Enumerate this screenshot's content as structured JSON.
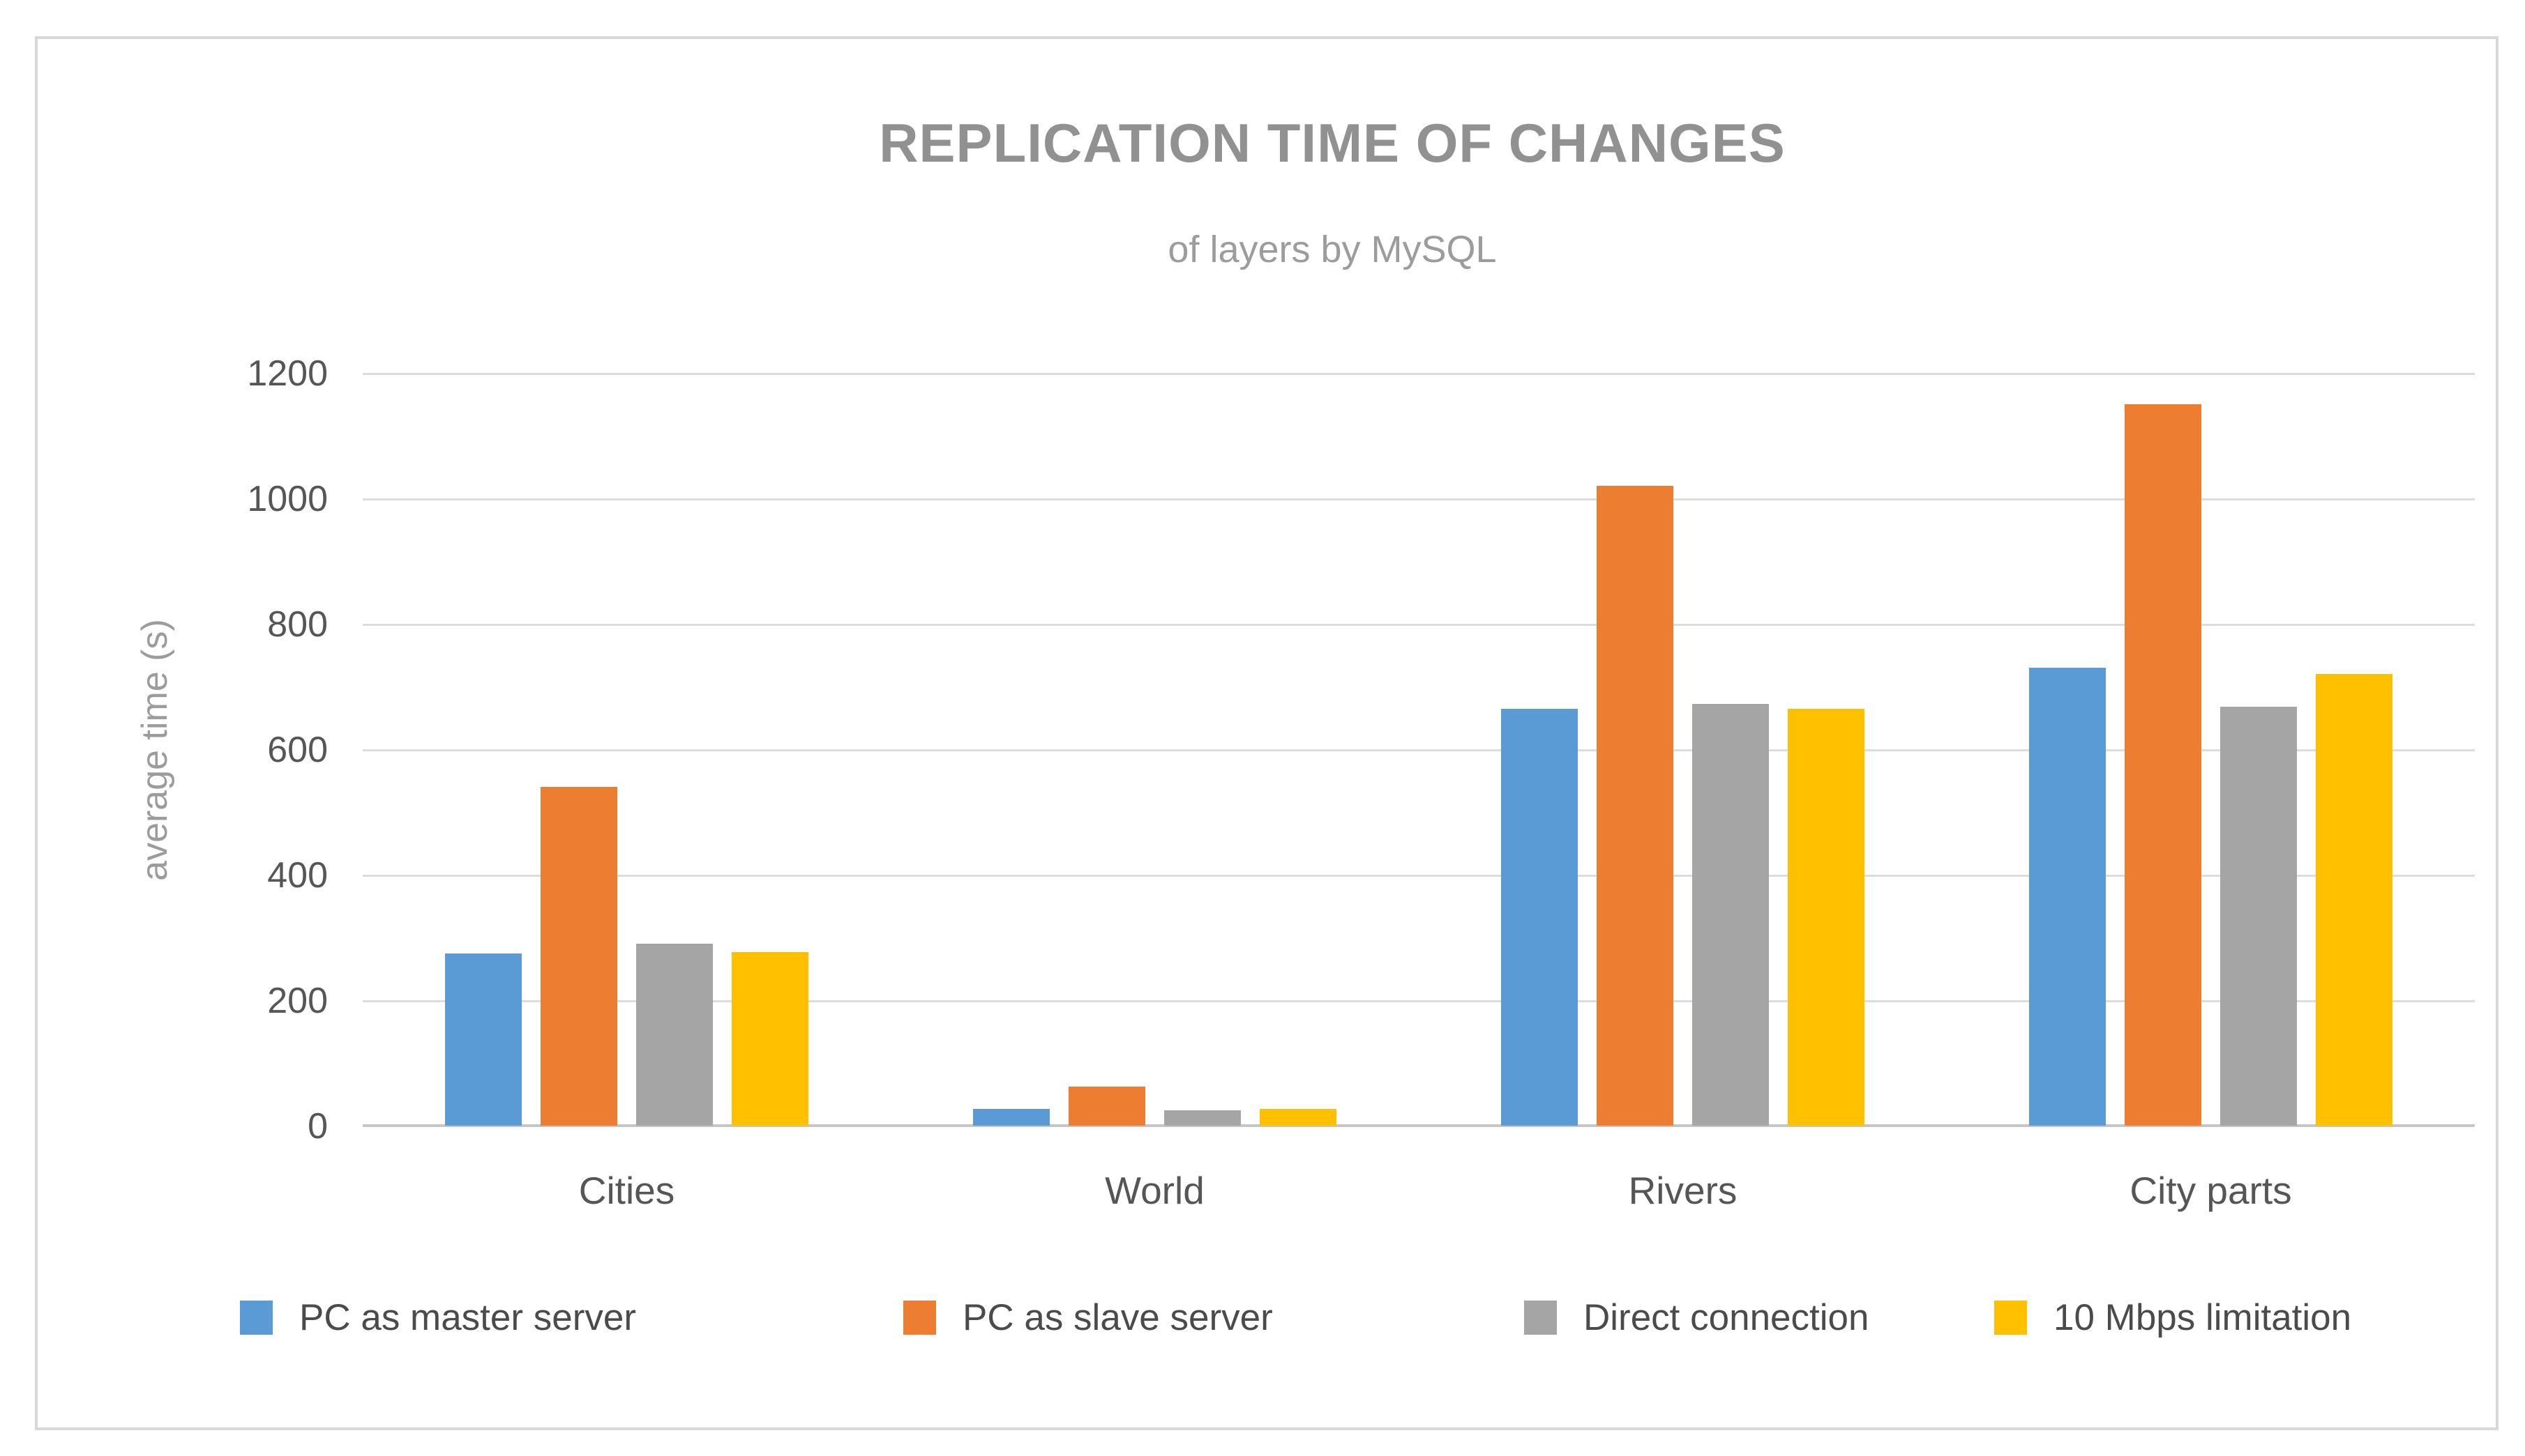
{
  "header": {
    "title": "REPLICATION TIME OF CHANGES",
    "subtitle": "of layers by MySQL"
  },
  "chart_data": {
    "type": "bar",
    "title": "REPLICATION TIME OF CHANGES",
    "subtitle": "of layers by MySQL",
    "categories": [
      "Cities",
      "World",
      "Rivers",
      "City parts"
    ],
    "series": [
      {
        "name": "PC as master server",
        "color": "#5B9BD5",
        "values": [
          275,
          27,
          665,
          730
        ]
      },
      {
        "name": "PC as slave server",
        "color": "#ED7D31",
        "values": [
          540,
          62,
          1020,
          1150
        ]
      },
      {
        "name": "Direct connection",
        "color": "#A5A5A5",
        "values": [
          290,
          25,
          672,
          668
        ]
      },
      {
        "name": "10 Mbps limitation",
        "color": "#FFC000",
        "values": [
          277,
          27,
          665,
          720
        ]
      }
    ],
    "ylabel": "average time (s)",
    "ylim": [
      0,
      1200
    ],
    "yticks": [
      0,
      200,
      400,
      600,
      800,
      1000,
      1200
    ],
    "grid": true,
    "legend_position": "bottom",
    "colors": {
      "gridline": "#dcdcdc",
      "axis_line": "#c6c6c6",
      "title_text": "#919191",
      "tick_text": "#565656"
    }
  }
}
